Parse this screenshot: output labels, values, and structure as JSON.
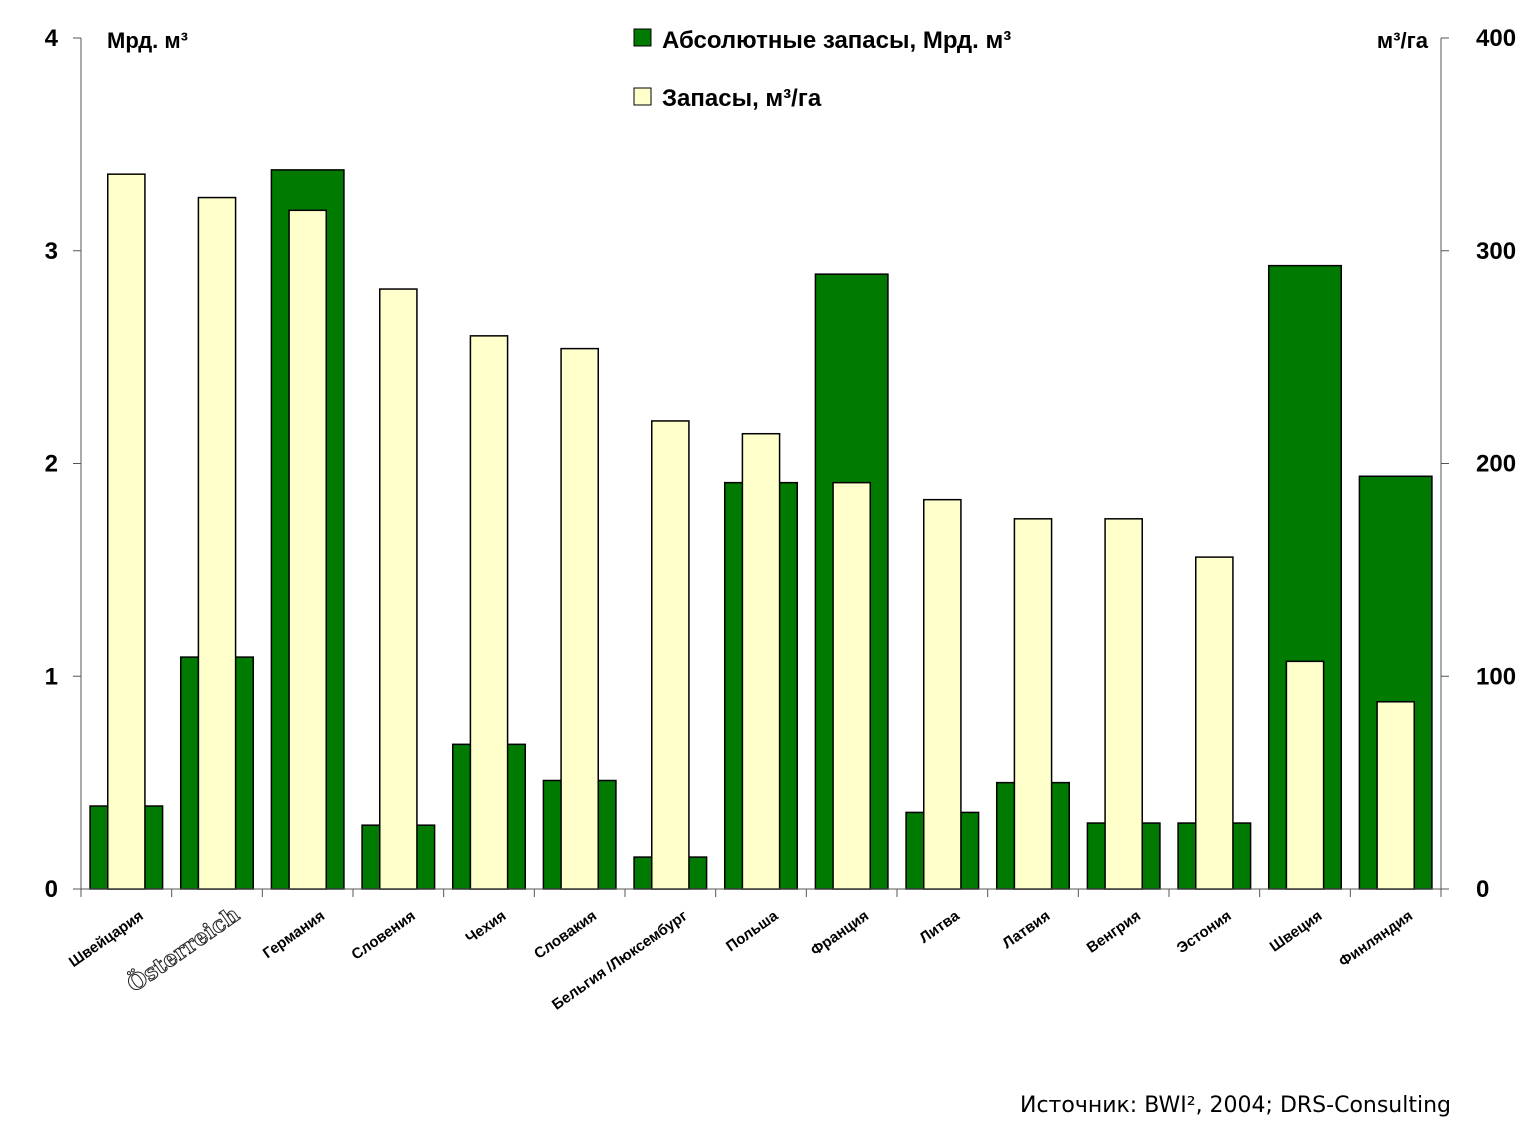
{
  "chart_data": {
    "type": "bar",
    "title": "",
    "xlabel": "",
    "categories": [
      "Швейцария",
      "Österreich",
      "Германия",
      "Словения",
      "Чехия",
      "Словакия",
      "Бельгия /Люксембург",
      "Польша",
      "Франция",
      "Литва",
      "Латвия",
      "Венгрия",
      "Эстония",
      "Швеция",
      "Финляндия"
    ],
    "y_left": {
      "label": "Мрд. м³",
      "ylim": [
        0,
        4
      ],
      "ticks": [
        "0",
        "1",
        "2",
        "3",
        "4"
      ]
    },
    "y_right": {
      "label": "м³/га",
      "ylim": [
        0,
        400
      ],
      "ticks": [
        "0",
        "100",
        "200",
        "300",
        "400"
      ]
    },
    "series": [
      {
        "name": "Абсолютные запасы, Мрд. м³",
        "axis": "left",
        "color": "#007a00",
        "values": [
          0.39,
          1.09,
          3.38,
          0.3,
          0.68,
          0.51,
          0.15,
          1.91,
          2.89,
          0.36,
          0.5,
          0.31,
          0.31,
          2.93,
          1.94
        ]
      },
      {
        "name": "Запасы, м³/га",
        "axis": "right",
        "color": "#ffffcc",
        "values": [
          336,
          325,
          319,
          282,
          260,
          254,
          220,
          214,
          191,
          183,
          174,
          174,
          156,
          107,
          88
        ]
      }
    ],
    "legend_position": "top",
    "grid": false
  },
  "source_text": "Источник: BWI², 2004; DRS-Consulting"
}
